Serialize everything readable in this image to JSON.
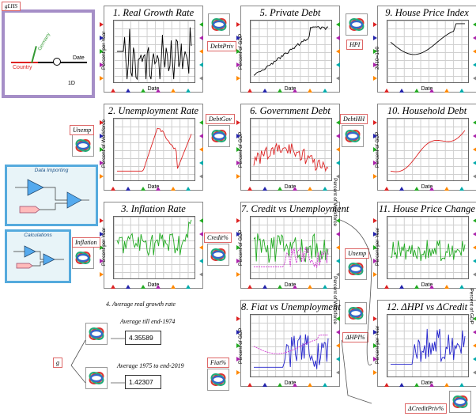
{
  "top_left_group": {
    "label": "gLHS",
    "country_label": "Country",
    "germany_label": "Germany",
    "date_label": "Date",
    "dim_label": "1D"
  },
  "panels": [
    {
      "id": "p1",
      "title": "1. Real Growth Rate",
      "ylabel": "Percent per Year",
      "xlabel": "Date",
      "color": "#000000"
    },
    {
      "id": "p2",
      "title": "2. Unemployment Rate",
      "ylabel": "Percent of Workforce",
      "xlabel": "Date",
      "color": "#dd2222"
    },
    {
      "id": "p3",
      "title": "3. Inflation Rate",
      "ylabel": "Percent per Year",
      "xlabel": "Date",
      "color": "#22aa22"
    },
    {
      "id": "p5",
      "title": "5. Private Debt",
      "ylabel": "Percent of GDP",
      "xlabel": "Date",
      "color": "#000000"
    },
    {
      "id": "p6",
      "title": "6. Government Debt",
      "ylabel": "Percent of GDP",
      "xlabel": "Date",
      "color": "#dd2222"
    },
    {
      "id": "p7",
      "title": "7. Credit vs Unemployment",
      "ylabel": "Percent of GDP",
      "ylabel_r": "Percent of Workforce",
      "xlabel": "Date",
      "color": "#22aa22"
    },
    {
      "id": "p8",
      "title": "8. Fiat vs Unemployment",
      "ylabel": "Percent of GDP",
      "ylabel_r": "Percent of Workforce",
      "xlabel": "Date",
      "color": "#2222cc"
    },
    {
      "id": "p9",
      "title": "9. House Price Index",
      "ylabel": "2010=100",
      "xlabel": "Date",
      "color": "#000000"
    },
    {
      "id": "p10",
      "title": "10. Household Debt",
      "ylabel": "Percent of GDP",
      "xlabel": "Date",
      "color": "#dd2222"
    },
    {
      "id": "p11",
      "title": "11. House Price Change",
      "ylabel": "Percent per Year",
      "xlabel": "Date",
      "color": "#22aa22"
    },
    {
      "id": "p12",
      "title": "12. ΔHPI vs ΔCredit",
      "ylabel": "Percent per Year",
      "ylabel_r": "Percent of GDP",
      "xlabel": "Date",
      "color": "#2222cc"
    }
  ],
  "variables": {
    "debt_priv": "DebtPriv",
    "debt_gov": "DebtGov",
    "debt_hh": "DebtHH",
    "hpi": "HPI",
    "unemp_left": "Unemp",
    "unemp_right": "Unemp",
    "inflation": "Inflation",
    "credit": "Credit%",
    "hpi_pct": "ΔHPI%",
    "fiat": "Fiat%",
    "g": "g",
    "d_credit": "ΔCreditPriv%"
  },
  "groups": {
    "data_importing": "Data Importing",
    "calculations": "Calculations"
  },
  "average_section": {
    "title": "4. Average real growth rate",
    "label_1": "Average till end-1974",
    "value_1": "4.35589",
    "label_2": "Average 1975 to end-2019",
    "value_2": "1.42307"
  },
  "colors": {
    "frame_purple": "#a58ec7",
    "godley_border": "#5ad",
    "label_border": "#d66"
  }
}
